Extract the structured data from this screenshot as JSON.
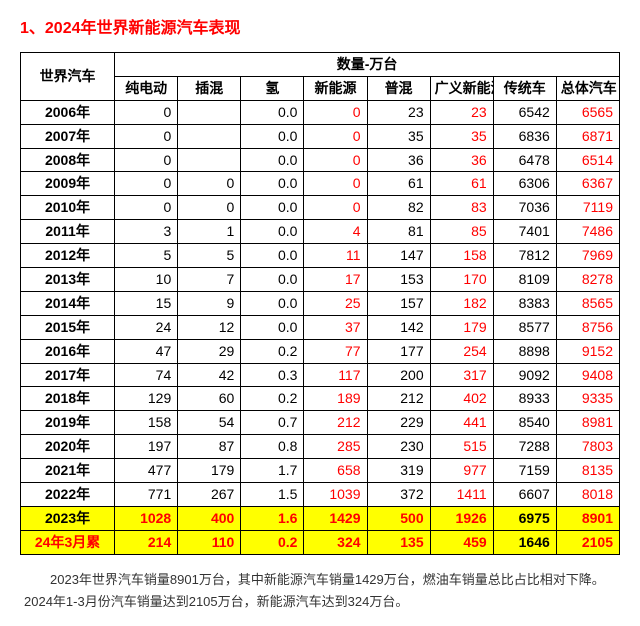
{
  "title": {
    "text": "1、2024年世界新能源汽车表现",
    "color": "#ff0000"
  },
  "colors": {
    "red": "#ff0000",
    "black": "#000000",
    "highlight_bg": "#ffff00",
    "normal_bg": "#ffffff"
  },
  "table": {
    "row_header": "世界汽车",
    "super_header": "数量-万台",
    "columns": [
      "纯电动",
      "插混",
      "氢",
      "新能源",
      "普混",
      "广义新能源",
      "传统车",
      "总体汽车"
    ],
    "col_red": [
      false,
      false,
      false,
      true,
      false,
      true,
      false,
      true
    ],
    "rows": [
      {
        "label": "2006年",
        "vals": [
          "0",
          "",
          "0.0",
          "0",
          "23",
          "23",
          "6542",
          "6565"
        ],
        "hl": false,
        "label_red": false,
        "cell_red": [
          false,
          false,
          false,
          false,
          false,
          false,
          false,
          false
        ]
      },
      {
        "label": "2007年",
        "vals": [
          "0",
          "",
          "0.0",
          "0",
          "35",
          "35",
          "6836",
          "6871"
        ],
        "hl": false,
        "label_red": false,
        "cell_red": [
          false,
          false,
          false,
          false,
          false,
          false,
          false,
          false
        ]
      },
      {
        "label": "2008年",
        "vals": [
          "0",
          "",
          "0.0",
          "0",
          "36",
          "36",
          "6478",
          "6514"
        ],
        "hl": false,
        "label_red": false,
        "cell_red": [
          false,
          false,
          false,
          false,
          false,
          false,
          false,
          false
        ]
      },
      {
        "label": "2009年",
        "vals": [
          "0",
          "0",
          "0.0",
          "0",
          "61",
          "61",
          "6306",
          "6367"
        ],
        "hl": false,
        "label_red": false,
        "cell_red": [
          false,
          false,
          false,
          false,
          false,
          false,
          false,
          false
        ]
      },
      {
        "label": "2010年",
        "vals": [
          "0",
          "0",
          "0.0",
          "0",
          "82",
          "83",
          "7036",
          "7119"
        ],
        "hl": false,
        "label_red": false,
        "cell_red": [
          false,
          false,
          false,
          false,
          false,
          false,
          false,
          false
        ]
      },
      {
        "label": "2011年",
        "vals": [
          "3",
          "1",
          "0.0",
          "4",
          "81",
          "85",
          "7401",
          "7486"
        ],
        "hl": false,
        "label_red": false,
        "cell_red": [
          false,
          false,
          false,
          false,
          false,
          false,
          false,
          false
        ]
      },
      {
        "label": "2012年",
        "vals": [
          "5",
          "5",
          "0.0",
          "11",
          "147",
          "158",
          "7812",
          "7969"
        ],
        "hl": false,
        "label_red": false,
        "cell_red": [
          false,
          false,
          false,
          false,
          false,
          false,
          false,
          false
        ]
      },
      {
        "label": "2013年",
        "vals": [
          "10",
          "7",
          "0.0",
          "17",
          "153",
          "170",
          "8109",
          "8278"
        ],
        "hl": false,
        "label_red": false,
        "cell_red": [
          false,
          false,
          false,
          false,
          false,
          false,
          false,
          false
        ]
      },
      {
        "label": "2014年",
        "vals": [
          "15",
          "9",
          "0.0",
          "25",
          "157",
          "182",
          "8383",
          "8565"
        ],
        "hl": false,
        "label_red": false,
        "cell_red": [
          false,
          false,
          false,
          false,
          false,
          false,
          false,
          false
        ]
      },
      {
        "label": "2015年",
        "vals": [
          "24",
          "12",
          "0.0",
          "37",
          "142",
          "179",
          "8577",
          "8756"
        ],
        "hl": false,
        "label_red": false,
        "cell_red": [
          false,
          false,
          false,
          false,
          false,
          false,
          false,
          false
        ]
      },
      {
        "label": "2016年",
        "vals": [
          "47",
          "29",
          "0.2",
          "77",
          "177",
          "254",
          "8898",
          "9152"
        ],
        "hl": false,
        "label_red": false,
        "cell_red": [
          false,
          false,
          false,
          false,
          false,
          false,
          false,
          false
        ]
      },
      {
        "label": "2017年",
        "vals": [
          "74",
          "42",
          "0.3",
          "117",
          "200",
          "317",
          "9092",
          "9408"
        ],
        "hl": false,
        "label_red": false,
        "cell_red": [
          false,
          false,
          false,
          false,
          false,
          false,
          false,
          false
        ]
      },
      {
        "label": "2018年",
        "vals": [
          "129",
          "60",
          "0.2",
          "189",
          "212",
          "402",
          "8933",
          "9335"
        ],
        "hl": false,
        "label_red": false,
        "cell_red": [
          false,
          false,
          false,
          false,
          false,
          false,
          false,
          false
        ]
      },
      {
        "label": "2019年",
        "vals": [
          "158",
          "54",
          "0.7",
          "212",
          "229",
          "441",
          "8540",
          "8981"
        ],
        "hl": false,
        "label_red": false,
        "cell_red": [
          false,
          false,
          false,
          false,
          false,
          false,
          false,
          false
        ]
      },
      {
        "label": "2020年",
        "vals": [
          "197",
          "87",
          "0.8",
          "285",
          "230",
          "515",
          "7288",
          "7803"
        ],
        "hl": false,
        "label_red": false,
        "cell_red": [
          false,
          false,
          false,
          false,
          false,
          false,
          false,
          false
        ]
      },
      {
        "label": "2021年",
        "vals": [
          "477",
          "179",
          "1.7",
          "658",
          "319",
          "977",
          "7159",
          "8135"
        ],
        "hl": false,
        "label_red": false,
        "cell_red": [
          false,
          false,
          false,
          false,
          false,
          false,
          false,
          false
        ]
      },
      {
        "label": "2022年",
        "vals": [
          "771",
          "267",
          "1.5",
          "1039",
          "372",
          "1411",
          "6607",
          "8018"
        ],
        "hl": false,
        "label_red": false,
        "cell_red": [
          false,
          false,
          false,
          false,
          false,
          false,
          false,
          false
        ]
      },
      {
        "label": "2023年",
        "vals": [
          "1028",
          "400",
          "1.6",
          "1429",
          "500",
          "1926",
          "6975",
          "8901"
        ],
        "hl": true,
        "label_red": false,
        "cell_red": [
          true,
          true,
          true,
          true,
          true,
          true,
          false,
          true
        ]
      },
      {
        "label": "24年3月累",
        "vals": [
          "214",
          "110",
          "0.2",
          "324",
          "135",
          "459",
          "1646",
          "2105"
        ],
        "hl": true,
        "label_red": true,
        "cell_red": [
          true,
          true,
          true,
          true,
          true,
          true,
          false,
          true
        ]
      }
    ]
  },
  "caption": "2023年世界汽车销量8901万台，其中新能源汽车销量1429万台，燃油车销量总比占比相对下降。2024年1-3月份汽车销量达到2105万台，新能源汽车达到324万台。"
}
